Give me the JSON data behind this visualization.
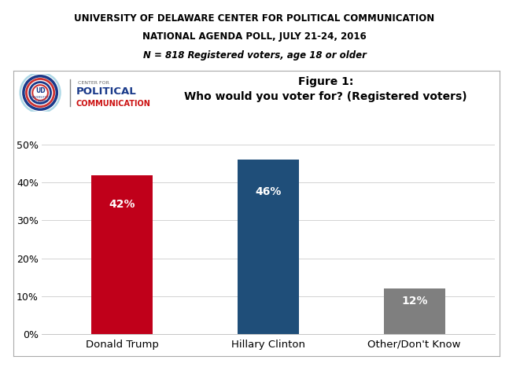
{
  "title_line1": "UNIVERSITY OF DELAWARE CENTER FOR POLITICAL COMMUNICATION",
  "title_line2": "NATIONAL AGENDA POLL, JULY 21-24, 2016",
  "title_line3": "N = 818 Registered voters, age 18 or older",
  "figure_label": "Figure 1:",
  "figure_question": "Who would you voter for? (Registered voters)",
  "categories": [
    "Donald Trump",
    "Hillary Clinton",
    "Other/Don't Know"
  ],
  "values": [
    42,
    46,
    12
  ],
  "labels": [
    "42%",
    "46%",
    "12%"
  ],
  "bar_colors": [
    "#c0001a",
    "#1f4e79",
    "#7f7f7f"
  ],
  "ylim": [
    0,
    50
  ],
  "yticks": [
    0,
    10,
    20,
    30,
    40,
    50
  ],
  "ytick_labels": [
    "0%",
    "10%",
    "20%",
    "30%",
    "40%",
    "50%"
  ],
  "background_color": "#ffffff",
  "title_fontsize": 8.5,
  "label_fontsize": 10,
  "tick_fontsize": 9,
  "xticklabel_fontsize": 9.5,
  "figure_label_fontsize": 10,
  "figure_question_fontsize": 10
}
